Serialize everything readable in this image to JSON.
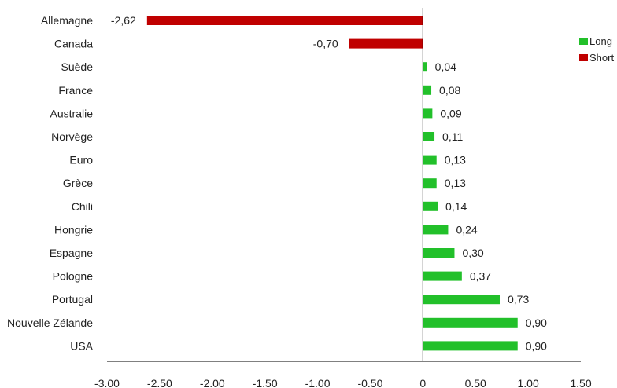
{
  "chart_data": {
    "type": "bar",
    "orientation": "horizontal",
    "categories": [
      "Allemagne",
      "Canada",
      "Suède",
      "France",
      "Australie",
      "Norvège",
      "Euro",
      "Grèce",
      "Chili",
      "Hongrie",
      "Espagne",
      "Pologne",
      "Portugal",
      "Nouvelle Zélande",
      "USA"
    ],
    "values": [
      -2.62,
      -0.7,
      0.04,
      0.08,
      0.09,
      0.11,
      0.13,
      0.13,
      0.14,
      0.24,
      0.3,
      0.37,
      0.73,
      0.9,
      0.9
    ],
    "data_labels": [
      "-2,62",
      "-0,70",
      "0,04",
      "0,08",
      "0,09",
      "0,11",
      "0,13",
      "0,13",
      "0,14",
      "0,24",
      "0,30",
      "0,37",
      "0,73",
      "0,90",
      "0,90"
    ],
    "xlim": [
      -3.0,
      1.5
    ],
    "xticks": [
      -3.0,
      -2.5,
      -2.0,
      -1.5,
      -1.0,
      -0.5,
      0,
      0.5,
      1.0,
      1.5
    ],
    "xtick_labels": [
      "-3.00",
      "-2.50",
      "-2.00",
      "-1.50",
      "-1.00",
      "-0.50",
      "0",
      "0.50",
      "1.00",
      "1.50"
    ],
    "legend_position": "top-right",
    "series": [
      {
        "name": "Long",
        "color": "#22c02a"
      },
      {
        "name": "Short",
        "color": "#c00000"
      }
    ],
    "grid": false
  }
}
